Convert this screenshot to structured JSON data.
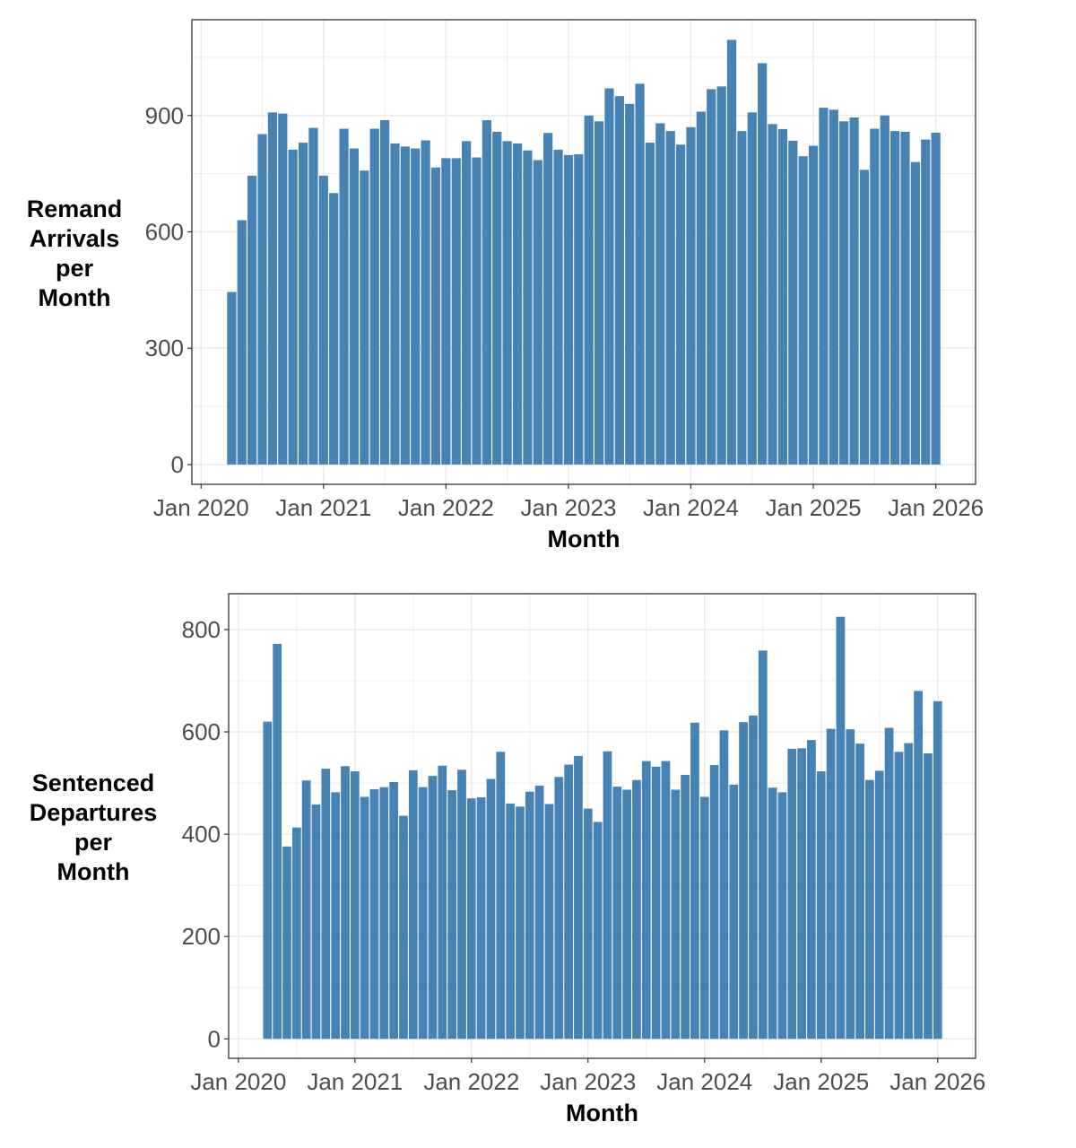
{
  "chart_data": [
    {
      "type": "bar",
      "title": "",
      "xlabel": "Month",
      "ylabel": "Remand Arrivals per Month",
      "ylabel_lines": [
        "Remand",
        "Arrivals",
        "per",
        "Month"
      ],
      "start_month": "2020-04",
      "x_ticks": [
        "Jan 2020",
        "Jan 2021",
        "Jan 2022",
        "Jan 2023",
        "Jan 2024",
        "Jan 2025",
        "Jan 2026"
      ],
      "y_ticks": [
        0,
        300,
        600,
        900
      ],
      "ylim": [
        -51,
        1147
      ],
      "xlim_months_from_jan2020": [
        -0.9,
        75.9
      ],
      "grid": true,
      "bar_color": "#4682B4",
      "values": [
        445,
        630,
        745,
        852,
        908,
        905,
        812,
        830,
        868,
        745,
        700,
        866,
        815,
        758,
        866,
        888,
        828,
        820,
        815,
        836,
        766,
        790,
        790,
        834,
        792,
        888,
        858,
        834,
        828,
        810,
        785,
        855,
        812,
        798,
        800,
        900,
        885,
        970,
        950,
        930,
        982,
        830,
        880,
        860,
        825,
        870,
        910,
        968,
        975,
        1095,
        860,
        908,
        1035,
        878,
        865,
        835,
        795,
        822,
        920,
        915,
        885,
        895,
        760,
        866,
        900,
        860,
        858,
        780,
        838,
        856
      ]
    },
    {
      "type": "bar",
      "title": "",
      "xlabel": "Month",
      "ylabel": "Sentenced Departures per Month",
      "ylabel_lines": [
        "Sentenced",
        "Departures",
        "per",
        "Month"
      ],
      "start_month": "2020-04",
      "x_ticks": [
        "Jan 2020",
        "Jan 2021",
        "Jan 2022",
        "Jan 2023",
        "Jan 2024",
        "Jan 2025",
        "Jan 2026"
      ],
      "y_ticks": [
        0,
        200,
        400,
        600,
        800
      ],
      "ylim": [
        -38,
        870
      ],
      "xlim_months_from_jan2020": [
        -1.0,
        75.9
      ],
      "grid": true,
      "bar_color": "#4682B4",
      "values": [
        620,
        772,
        376,
        413,
        505,
        458,
        528,
        482,
        533,
        523,
        473,
        488,
        492,
        502,
        436,
        525,
        492,
        514,
        534,
        486,
        526,
        470,
        472,
        508,
        561,
        460,
        454,
        483,
        495,
        459,
        512,
        536,
        553,
        450,
        424,
        562,
        493,
        487,
        506,
        543,
        532,
        543,
        487,
        516,
        618,
        473,
        535,
        603,
        497,
        619,
        632,
        759,
        491,
        482,
        567,
        568,
        584,
        523,
        606,
        825,
        605,
        577,
        506,
        524,
        608,
        561,
        578,
        680,
        558,
        660
      ]
    }
  ]
}
